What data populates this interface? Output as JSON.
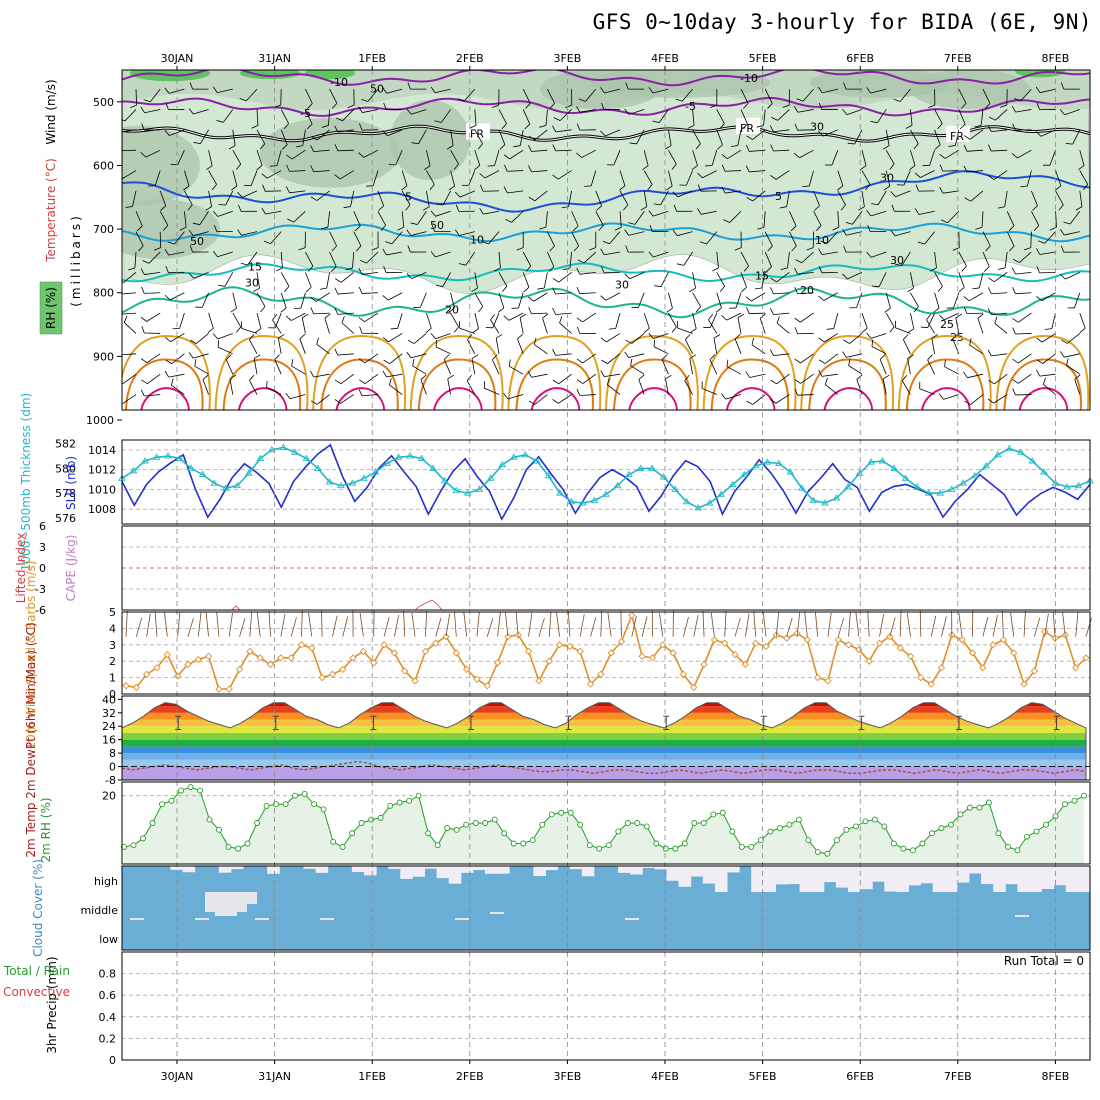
{
  "title": "GFS 0~10day 3-hourly for BIDA (6E, 9N)",
  "dates": [
    "30JAN",
    "31JAN",
    "1FEB",
    "2FEB",
    "3FEB",
    "4FEB",
    "5FEB",
    "6FEB",
    "7FEB",
    "8FEB"
  ],
  "colors": {
    "rh_fill": "#d2e8d2",
    "rh_dark": "#a9c4a9",
    "rh_high": "#5fc45f",
    "temp_m10": "#8a1fa8",
    "temp_m5": "#8a1fa8",
    "temp_fr": "#000000",
    "temp_5": "#1f4fd6",
    "temp_10": "#1c9fd9",
    "temp_15": "#16bdbd",
    "temp_20": "#1fb58a",
    "temp_25": "#e0a020",
    "temp_30": "#e07a10",
    "temp_35": "#d6107a",
    "slp": "#2030c8",
    "thickness": "#20b8c8",
    "wind10m": "#e0902a",
    "rh2m": "#2a9a2a",
    "rh2m_fill": "#e6f2e6",
    "cloud": "#6aaed6",
    "cloud_clear": "#f0eef4",
    "dewpt": "#a05030",
    "lifted": "#d04040",
    "cape": "#c080c0"
  },
  "chart_data": [
    {
      "panel": "upper-air",
      "type": "heatmap",
      "ylabel": "(millibars)",
      "ylabels": [
        "RH (%)",
        "Temperature (°C)",
        "Wind (m/s)"
      ],
      "yticks": [
        500,
        600,
        700,
        800,
        900,
        1000
      ],
      "ylim": [
        450,
        1000
      ],
      "isotherms": [
        {
          "label": "-10",
          "p": 460
        },
        {
          "label": "-5",
          "p": 508
        },
        {
          "label": "FR",
          "p": 550
        },
        {
          "label": "5",
          "p": 640
        },
        {
          "label": "10",
          "p": 705
        },
        {
          "label": "15",
          "p": 768
        },
        {
          "label": "20",
          "p": 815
        },
        {
          "label": "25",
          "p": 868
        }
      ],
      "rh_labels": [
        "50",
        "30"
      ]
    },
    {
      "panel": "slp-thickness",
      "type": "line",
      "ylabel_left": "1000~500mb Thickness (dm)",
      "ylabel_right": "SLP (mb)",
      "thickness_ticks": [
        576,
        578,
        580,
        582
      ],
      "slp_ticks": [
        1008,
        1010,
        1012,
        1014
      ],
      "thickness_ylim": [
        575.5,
        582.3
      ],
      "slp_ylim": [
        1006.5,
        1015
      ],
      "series": [
        {
          "name": "SLP",
          "values": [
            1010.8,
            1008.4,
            1010.5,
            1011.8,
            1012.7,
            1013.5,
            1010.0,
            1007.2,
            1009.0,
            1011.2,
            1012.6,
            1011.7,
            1010.6,
            1008.2,
            1010.8,
            1012.3,
            1013.6,
            1014.5,
            1011.3,
            1008.8,
            1010.2,
            1012.2,
            1013.4,
            1011.8,
            1010.3,
            1007.5,
            1009.8,
            1011.8,
            1013.1,
            1011.3,
            1009.8,
            1007.0,
            1009.2,
            1012.0,
            1013.3,
            1011.6,
            1010.0,
            1007.6,
            1009.6,
            1011.2,
            1012.0,
            1011.3,
            1010.3,
            1007.8,
            1009.3,
            1011.4,
            1012.9,
            1012.3,
            1010.8,
            1007.5,
            1009.8,
            1011.3,
            1013.0,
            1011.6,
            1009.8,
            1007.6,
            1009.8,
            1011.1,
            1012.6,
            1011.0,
            1010.2,
            1007.8,
            1009.7,
            1010.3,
            1010.5,
            1010.0,
            1009.5,
            1007.2,
            1008.8,
            1010.0,
            1011.5,
            1010.5,
            1009.5,
            1007.4,
            1008.7,
            1009.6,
            1010.2,
            1009.7,
            1009.0,
            1010.5
          ]
        },
        {
          "name": "Thickness",
          "values": [
            579.2,
            579.8,
            580.6,
            580.9,
            581.0,
            580.8,
            580.0,
            579.5,
            578.8,
            578.4,
            578.6,
            579.6,
            580.8,
            581.5,
            581.7,
            581.3,
            580.8,
            580.0,
            578.9,
            578.6,
            578.8,
            579.2,
            579.7,
            580.4,
            580.9,
            581.0,
            580.8,
            580.0,
            579.0,
            578.2,
            578.0,
            578.3,
            579.2,
            580.3,
            580.9,
            581.1,
            580.6,
            579.4,
            578.0,
            577.3,
            577.2,
            577.4,
            577.9,
            578.6,
            579.5,
            580.0,
            580.0,
            579.3,
            578.3,
            577.3,
            576.8,
            577.2,
            577.9,
            578.7,
            579.5,
            580.2,
            580.5,
            580.4,
            579.7,
            578.4,
            577.4,
            577.2,
            577.6,
            578.5,
            579.6,
            580.5,
            580.6,
            580.0,
            579.2,
            578.5,
            578.0,
            578.0,
            578.3,
            578.8,
            579.4,
            580.2,
            581.1,
            581.6,
            581.3,
            580.6,
            579.7,
            578.8,
            578.5,
            578.6,
            579.0
          ]
        }
      ]
    },
    {
      "panel": "lifted-cape",
      "type": "line",
      "ylabel_left": "Lifted Index",
      "ylabel_right": "CAPE (J/kg)",
      "yticks": [
        -6,
        -3,
        0,
        3,
        6
      ],
      "yticklabels": [
        "6",
        "3",
        "0",
        "-3",
        "-6"
      ],
      "ylim": [
        -6,
        6
      ]
    },
    {
      "panel": "wind10m",
      "type": "line",
      "ylabel": "10m Wind Speed & Barbs (m/s)",
      "yticks": [
        0,
        1,
        2,
        3,
        4,
        5
      ],
      "ylim": [
        0,
        5
      ],
      "series": [
        {
          "name": "10m Wind Speed",
          "values": [
            0.5,
            0.4,
            1.2,
            1.6,
            2.4,
            1.1,
            1.8,
            2.1,
            2.3,
            0.3,
            0.3,
            1.5,
            2.6,
            2.2,
            1.8,
            2.2,
            2.2,
            3.0,
            2.8,
            1.0,
            1.2,
            1.5,
            2.2,
            2.6,
            1.9,
            3.0,
            2.5,
            1.4,
            0.8,
            2.6,
            3.1,
            3.5,
            2.5,
            1.5,
            0.9,
            0.5,
            1.9,
            3.5,
            3.6,
            2.6,
            0.8,
            2.0,
            3.0,
            2.9,
            2.6,
            0.6,
            1.2,
            2.5,
            3.2,
            4.8,
            2.3,
            2.2,
            3.0,
            2.5,
            1.2,
            0.4,
            1.8,
            3.3,
            3.1,
            2.4,
            1.8,
            3.1,
            2.9,
            3.6,
            3.4,
            3.7,
            3.3,
            1.0,
            0.8,
            3.3,
            3.0,
            2.7,
            2.0,
            3.1,
            3.5,
            2.8,
            2.3,
            1.0,
            0.6,
            1.6,
            3.6,
            3.3,
            2.5,
            1.6,
            3.0,
            3.3,
            2.5,
            0.6,
            1.4,
            3.8,
            3.4,
            3.6,
            1.6,
            2.2
          ]
        }
      ]
    },
    {
      "panel": "temperature2m",
      "type": "area",
      "ylabel": "2m Temp 2m DewPt (6hr Min/Max) (°C)",
      "yticks": [
        -8,
        0,
        8,
        16,
        24,
        32,
        40
      ],
      "ylim": [
        -8,
        42
      ],
      "bands": [
        -8,
        0,
        4,
        8,
        12,
        16,
        20,
        24,
        28,
        32,
        36,
        40
      ],
      "series": [
        {
          "name": "2m Temp",
          "values": [
            23,
            26,
            30,
            35,
            38,
            37,
            33,
            30,
            27,
            25,
            23,
            26,
            30,
            35,
            38,
            38,
            34,
            30,
            28,
            25,
            23,
            26,
            31,
            35,
            38,
            38,
            34,
            30,
            27,
            25,
            23,
            26,
            30,
            35,
            38,
            38,
            34,
            30,
            28,
            25,
            23,
            26,
            31,
            35,
            38,
            38,
            34,
            30,
            27,
            25,
            23,
            26,
            30,
            35,
            38,
            38,
            34,
            30,
            28,
            25,
            23,
            26,
            30,
            35,
            38,
            38,
            33,
            30,
            27,
            25,
            23,
            26,
            30,
            35,
            38,
            38,
            34,
            30,
            27,
            25,
            23,
            26,
            30,
            35,
            38,
            37,
            33,
            29,
            26,
            23
          ]
        },
        {
          "name": "2m DewPt",
          "values": [
            -1,
            -2,
            -1,
            0,
            1,
            0,
            -1,
            -2,
            -1,
            0,
            0,
            -1,
            -2,
            -1,
            0,
            1,
            -1,
            -2,
            -1,
            0,
            1,
            2,
            3,
            2,
            0,
            -1,
            -2,
            -1,
            0,
            1,
            0,
            -1,
            -2,
            -1,
            0,
            1,
            0,
            -1,
            -2,
            -3,
            -3,
            -2,
            -2,
            -3,
            -4,
            -3,
            -2,
            -2,
            -3,
            -4,
            -4,
            -3,
            -2,
            -3,
            -4,
            -3,
            -2,
            -3,
            -4,
            -3,
            -2,
            -2,
            -3,
            -4,
            -3,
            -2,
            -2,
            -3,
            -4,
            -4,
            -3,
            -2,
            -2,
            -3,
            -4,
            -3,
            -2,
            -3,
            -4,
            -3,
            -2,
            -3,
            -4,
            -3,
            -2,
            -2,
            -3,
            -4,
            -3,
            -2,
            -3
          ]
        }
      ]
    },
    {
      "panel": "rh2m",
      "type": "area",
      "ylabel": "2m RH (%)",
      "yticks": [
        20
      ],
      "ylim": [
        0,
        24
      ],
      "series": [
        {
          "name": "2m RH",
          "values": [
            5,
            5.5,
            7.5,
            12,
            17.5,
            18.5,
            21.5,
            22.5,
            21.5,
            13,
            10,
            5,
            4.5,
            6,
            12,
            17,
            17.5,
            17.5,
            20,
            20.5,
            17.5,
            16,
            6.5,
            5,
            9,
            12,
            13,
            13.5,
            17,
            18,
            18.5,
            20,
            9,
            5.5,
            10.5,
            10,
            11.5,
            12,
            12,
            13,
            9,
            6,
            6,
            7,
            11.5,
            14.5,
            15,
            15,
            11.5,
            5.5,
            4.5,
            5.5,
            9.5,
            12,
            12,
            11,
            6,
            4.5,
            4.5,
            6,
            12,
            12,
            14.5,
            15,
            9.5,
            5,
            5,
            7,
            9.5,
            10.5,
            11.5,
            13,
            7,
            3.5,
            3,
            7,
            10,
            11,
            12.5,
            13,
            11,
            6,
            4.5,
            4,
            6,
            9,
            10.5,
            11.5,
            14.5,
            16.5,
            16.5,
            18,
            9,
            5,
            4,
            8,
            9.5,
            11.5,
            14,
            17.5,
            18.5,
            20
          ]
        }
      ]
    },
    {
      "panel": "cloud-cover",
      "type": "heatmap",
      "ylabel": "Cloud Cover (%)",
      "yticklabels": [
        "high",
        "middle",
        "low"
      ]
    },
    {
      "panel": "precip",
      "type": "bar",
      "ylabel": "3hr Precip (mm)",
      "ylabels_left": [
        "Total / Rain",
        "Convective"
      ],
      "yticks": [
        0,
        0.2,
        0.4,
        0.6,
        0.8
      ],
      "ylim": [
        0,
        1
      ],
      "run_total_label": "Run Total = 0",
      "values": []
    }
  ]
}
